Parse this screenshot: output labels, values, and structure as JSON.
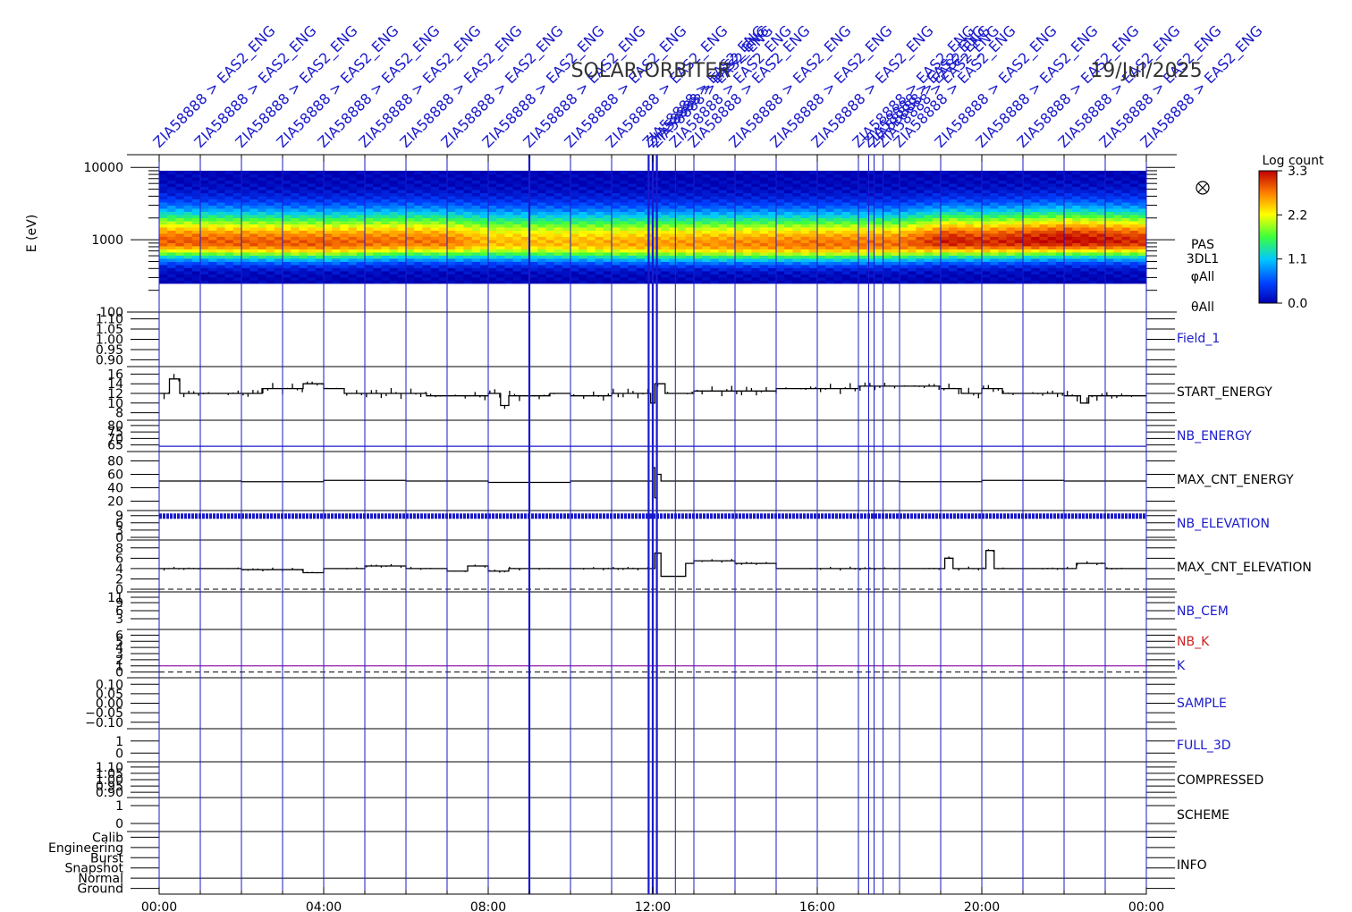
{
  "header": {
    "title": "SOLAR-ORBITER",
    "date": "19/Jul/2025"
  },
  "colors": {
    "marker_blue": "#1a1acc",
    "trace_black": "#000000",
    "nb_k_red": "#cc2222",
    "k_line": "#9a2fb0"
  },
  "time_axis": {
    "range_hours": [
      0,
      24
    ],
    "tick_labels": [
      "00:00",
      "04:00",
      "08:00",
      "12:00",
      "16:00",
      "20:00",
      "00:00"
    ],
    "tick_hours": [
      0,
      4,
      8,
      12,
      16,
      20,
      24
    ]
  },
  "markers": {
    "label": "ZIA58888 > EAS2_ENG",
    "hours": [
      0,
      1,
      2,
      3,
      4,
      5,
      6,
      7,
      8,
      9,
      10,
      11,
      11.9,
      12.0,
      12.1,
      12.55,
      13,
      14,
      15,
      16,
      17,
      17.25,
      17.38,
      17.6,
      18,
      19,
      20,
      21,
      22,
      23,
      24
    ]
  },
  "chart_data": [
    {
      "type": "heatmap",
      "name": "PAS 3DL1",
      "side_labels": [
        "PAS",
        "3DL1",
        "φAll",
        "θAll"
      ],
      "ylabel": "E (eV)",
      "yscale": "log",
      "ylim": [
        100,
        15000
      ],
      "ytick_labels": [
        "10000",
        "1000",
        "100"
      ],
      "ytick_values": [
        10000,
        1000,
        100
      ],
      "colorbar": {
        "label": "Log count",
        "range": [
          0.0,
          3.3
        ],
        "tick_labels": [
          "3.3",
          "2.2",
          "1.1",
          "0.0"
        ],
        "tick_values": [
          3.3,
          2.2,
          1.1,
          0.0
        ]
      },
      "coverage_energy_eV": [
        250,
        9000
      ],
      "band_hours": [
        0,
        2,
        4,
        6,
        7,
        8,
        10,
        12,
        14,
        16,
        18,
        19.2,
        20,
        22,
        24
      ],
      "peak_energy_eV": [
        950,
        920,
        900,
        950,
        930,
        920,
        900,
        880,
        870,
        870,
        880,
        950,
        930,
        980,
        950
      ],
      "peak_log_count": [
        2.9,
        2.9,
        2.9,
        2.8,
        2.8,
        2.5,
        2.5,
        2.6,
        2.7,
        2.8,
        2.8,
        3.2,
        3.1,
        3.3,
        3.1
      ]
    },
    {
      "type": "line",
      "name": "Field_1",
      "label_color": "#1a1acc",
      "ytick_labels": [
        "1.10",
        "1.05",
        "1.00",
        "0.95",
        "0.90"
      ],
      "ytick_values": [
        1.1,
        1.05,
        1.0,
        0.95,
        0.9
      ],
      "ylim": [
        0.88,
        1.12
      ]
    },
    {
      "type": "line",
      "name": "START_ENERGY",
      "label_color": "#000000",
      "ytick_labels": [
        "16",
        "14",
        "12",
        "10",
        "8"
      ],
      "ytick_values": [
        16,
        14,
        12,
        10,
        8
      ],
      "ylim": [
        7,
        17
      ],
      "x": [
        0,
        0.25,
        0.5,
        1,
        1.5,
        2,
        2.5,
        3,
        3.5,
        4,
        4.5,
        5,
        5.5,
        6,
        6.5,
        7,
        7.5,
        8,
        8.3,
        8.5,
        9,
        9.5,
        10,
        10.5,
        11,
        11.5,
        11.95,
        12.05,
        12.3,
        12.5,
        13,
        13.5,
        14,
        14.5,
        15,
        15.5,
        16,
        16.5,
        17,
        17.5,
        18,
        18.5,
        19,
        19.5,
        20,
        20.5,
        21,
        21.5,
        22,
        22.4,
        22.6,
        23,
        23.5,
        24
      ],
      "y": [
        12,
        15,
        12,
        12,
        12,
        12,
        13,
        13,
        14,
        13,
        12,
        12,
        12,
        12,
        11.5,
        11.5,
        11.5,
        12,
        9.5,
        11.5,
        11.5,
        12,
        11.5,
        11.5,
        12,
        12,
        10,
        14,
        12,
        12,
        12.5,
        12.5,
        12.5,
        12.5,
        13,
        13,
        13,
        13,
        13.5,
        13.5,
        13.5,
        13.5,
        13,
        12,
        13,
        12,
        12,
        12,
        11.5,
        10,
        11.5,
        11.5,
        11.5,
        11.5
      ]
    },
    {
      "type": "line",
      "name": "NB_ENERGY",
      "label_color": "#1a1acc",
      "ytick_labels": [
        "80",
        "75",
        "70",
        "65"
      ],
      "ytick_values": [
        80,
        75,
        70,
        65
      ],
      "ylim": [
        62,
        82
      ],
      "x": [
        0,
        24
      ],
      "y": [
        64,
        64
      ]
    },
    {
      "type": "line",
      "name": "MAX_CNT_ENERGY",
      "label_color": "#000000",
      "ytick_labels": [
        "80",
        "60",
        "40",
        "20"
      ],
      "ytick_values": [
        80,
        60,
        40,
        20
      ],
      "ylim": [
        10,
        90
      ],
      "x": [
        0,
        2,
        4,
        6,
        8,
        10,
        11.9,
        12.0,
        12.05,
        12.1,
        12.2,
        14,
        16,
        18,
        20,
        22,
        24
      ],
      "y": [
        50,
        49,
        51,
        50,
        48,
        50,
        50,
        70,
        25,
        60,
        50,
        50,
        50,
        49,
        51,
        50,
        50
      ]
    },
    {
      "type": "line",
      "name": "NB_ELEVATION",
      "label_color": "#1a1acc",
      "ytick_labels": [
        "9",
        "6",
        "3",
        "0"
      ],
      "ytick_values": [
        9,
        6,
        3,
        0
      ],
      "ylim": [
        0,
        10
      ],
      "x": [
        0,
        24
      ],
      "y": [
        8.8,
        8.8
      ]
    },
    {
      "type": "line",
      "name": "MAX_CNT_ELEVATION",
      "label_color": "#000000",
      "ytick_labels": [
        "8",
        "6",
        "4",
        "2",
        "0"
      ],
      "ytick_values": [
        8,
        6,
        4,
        2,
        0
      ],
      "ylim": [
        0,
        9
      ],
      "x": [
        0,
        1,
        2,
        3,
        3.5,
        4,
        5,
        6,
        7,
        7.5,
        8,
        8.5,
        9,
        10,
        11,
        11.9,
        12.05,
        12.2,
        12.8,
        13,
        14,
        15,
        16,
        17,
        18,
        19,
        19.1,
        19.3,
        20,
        20.1,
        20.3,
        21,
        22,
        22.3,
        23,
        24
      ],
      "y": [
        4,
        4,
        3.8,
        3.8,
        3.2,
        4,
        4.5,
        4,
        3.5,
        4.5,
        3.5,
        4,
        4,
        4,
        4,
        4,
        7,
        2.5,
        5,
        5.5,
        5,
        4,
        4,
        4,
        4,
        4,
        6,
        4,
        4,
        7.5,
        4,
        4,
        4,
        5,
        4,
        4
      ]
    },
    {
      "type": "line",
      "name": "NB_CEM",
      "label_color": "#1a1acc",
      "ytick_labels": [
        "11",
        "9",
        "6",
        "3"
      ],
      "ytick_values": [
        11,
        9,
        6,
        3
      ],
      "ylim": [
        0,
        12
      ]
    },
    {
      "type": "line",
      "name": "NB_K",
      "label_color": "#cc2222",
      "secondary_name": "K",
      "secondary_color": "#1a1acc",
      "ytick_labels": [
        "6",
        "5",
        "4",
        "3",
        "2",
        "1",
        "0"
      ],
      "ytick_values": [
        6,
        5,
        4,
        3,
        2,
        1,
        0
      ],
      "ylim": [
        -0.5,
        6.5
      ],
      "x": [
        0,
        24
      ],
      "y": [
        1,
        1
      ]
    },
    {
      "type": "line",
      "name": "SAMPLE",
      "label_color": "#1a1acc",
      "ytick_labels": [
        "0.10",
        "0.05",
        "0.00",
        "−0.05",
        "−0.10"
      ],
      "ytick_values": [
        0.1,
        0.05,
        0.0,
        -0.05,
        -0.1
      ],
      "ylim": [
        -0.12,
        0.12
      ]
    },
    {
      "type": "line",
      "name": "FULL_3D",
      "label_color": "#1a1acc",
      "ytick_labels": [
        "1",
        "0"
      ],
      "ytick_values": [
        1,
        0
      ],
      "ylim": [
        -0.5,
        1.8
      ]
    },
    {
      "type": "line",
      "name": "COMPRESSED",
      "label_color": "#000000",
      "ytick_labels": [
        "1.10",
        "1.05",
        "1.00",
        "0.95",
        "0.90"
      ],
      "ytick_values": [
        1.1,
        1.05,
        1.0,
        0.95,
        0.9
      ],
      "ylim": [
        0.88,
        1.12
      ]
    },
    {
      "type": "line",
      "name": "SCHEME",
      "label_color": "#000000",
      "ytick_labels": [
        "1",
        "0"
      ],
      "ytick_values": [
        1,
        0
      ],
      "ylim": [
        -0.3,
        1.3
      ]
    },
    {
      "type": "line",
      "name": "INFO",
      "label_color": "#000000",
      "ytick_labels": [
        "Calib",
        "Engineering",
        "Burst",
        "Snapshot",
        "Normal",
        "Ground"
      ],
      "ytick_values": [
        5,
        4,
        3,
        2,
        1,
        0
      ],
      "ylim": [
        -0.3,
        5.3
      ],
      "x": [
        0,
        24
      ],
      "y": [
        1,
        1
      ]
    }
  ]
}
